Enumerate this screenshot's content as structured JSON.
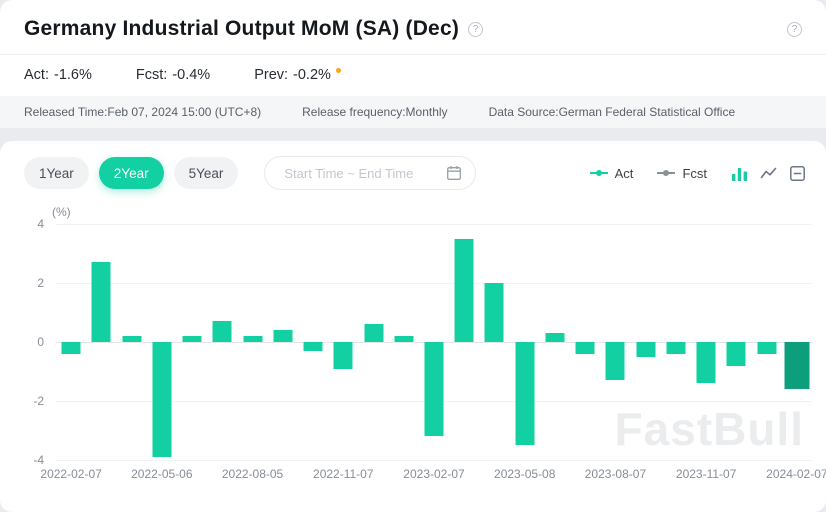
{
  "header": {
    "title": "Germany Industrial Output MoM (SA) (Dec)",
    "help_glyph": "?"
  },
  "stats": {
    "act_label": "Act:",
    "act_value": "-1.6%",
    "fcst_label": "Fcst:",
    "fcst_value": "-0.4%",
    "prev_label": "Prev:",
    "prev_value": "-0.2%"
  },
  "meta": {
    "released_time": "Released Time:Feb 07, 2024 15:00 (UTC+8)",
    "release_frequency": "Release frequency:Monthly",
    "data_source": "Data Source:German Federal Statistical Office"
  },
  "toolbar": {
    "range_buttons": [
      {
        "label": "1Year",
        "active": false
      },
      {
        "label": "2Year",
        "active": true
      },
      {
        "label": "5Year",
        "active": false
      }
    ],
    "date_range_placeholder": "Start Time ~ End Time",
    "legend": [
      {
        "label": "Act",
        "color": "#12d0a2"
      },
      {
        "label": "Fcst",
        "color": "#8a909a"
      }
    ],
    "chart_type_icons": [
      "bar-chart-icon",
      "line-chart-icon",
      "k-line-icon"
    ]
  },
  "watermark": "FastBull",
  "colors": {
    "accent_green": "#12d0a2",
    "selected_bar": "#0d9e7c",
    "prev_revision_dot": "#ffa21c"
  },
  "chart_data": {
    "type": "bar",
    "title": "Germany Industrial Output MoM (SA) (Dec)",
    "series_name": "Act",
    "unit_label": "(%)",
    "ylim": [
      -4,
      4
    ],
    "yticks": [
      4,
      2,
      0,
      -2,
      -4
    ],
    "grid": true,
    "legend_position": "top-right",
    "bar_color": "#12d0a2",
    "selected_bar_color": "#0d9e7c",
    "selected_index": 24,
    "values": [
      -0.4,
      2.7,
      0.2,
      -3.9,
      0.2,
      0.7,
      0.2,
      0.4,
      -0.3,
      -0.9,
      0.6,
      0.2,
      -3.2,
      3.5,
      2.0,
      -3.5,
      0.3,
      -0.4,
      -1.3,
      -0.5,
      -0.4,
      -1.4,
      -0.8,
      -0.4,
      -1.6
    ],
    "xticks": [
      {
        "i": 0,
        "label": "2022-02-07"
      },
      {
        "i": 3,
        "label": "2022-05-06"
      },
      {
        "i": 6,
        "label": "2022-08-05"
      },
      {
        "i": 9,
        "label": "2022-11-07"
      },
      {
        "i": 12,
        "label": "2023-02-07"
      },
      {
        "i": 15,
        "label": "2023-05-08"
      },
      {
        "i": 18,
        "label": "2023-08-07"
      },
      {
        "i": 21,
        "label": "2023-11-07"
      },
      {
        "i": 24,
        "label": "2024-02-07"
      }
    ]
  }
}
